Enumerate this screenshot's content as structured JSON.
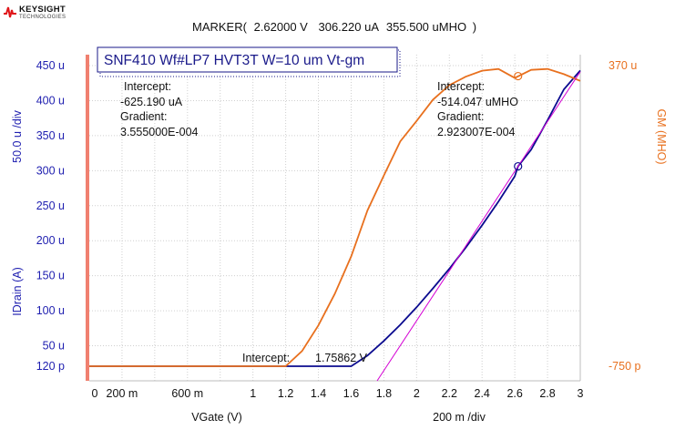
{
  "brand": {
    "name": "KEYSIGHT",
    "sub": "TECHNOLOGIES"
  },
  "marker": {
    "label": "MARKER(",
    "vgate": "2.62000 V",
    "idrain": "306.220 uA",
    "gm": "355.500 uMHO",
    "close": ")"
  },
  "colors": {
    "idrain": "#0b0b8f",
    "gm": "#e8701e",
    "tangent": "#d400d4",
    "left_bar": "#f08070",
    "grid": "#cfcfcf",
    "axis_label": "#1f1fb0"
  },
  "chart_data": {
    "type": "line",
    "title": "SNF410 Wf#LP7 HVT3T W=10 um Vt-gm",
    "xlabel": "VGate (V)",
    "x_scale_label": "200 m /div",
    "ylabel_left": "IDrain (A)",
    "ylabel_left_scale": "50.0 u /div",
    "ylabel_right": "GM (MHO)",
    "xlim": [
      0,
      3
    ],
    "ylim_left": [
      0,
      450
    ],
    "ylim_left_unit": "uA",
    "ylim_right": [
      -750,
      370
    ],
    "x_ticks": [
      "0",
      "200 m",
      "600 m",
      "1",
      "1.2",
      "1.4",
      "1.6",
      "1.8",
      "2",
      "2.2",
      "2.4",
      "2.6",
      "2.8",
      "3"
    ],
    "y_left_ticks": [
      "450 u",
      "400 u",
      "350 u",
      "300 u",
      "250 u",
      "200 u",
      "150 u",
      "100 u",
      "50 u",
      "120 p"
    ],
    "y_right_ticks": [
      "370 u",
      "-750 p"
    ],
    "grid": true,
    "series": [
      {
        "name": "IDrain",
        "axis": "left",
        "points": [
          [
            0,
            0
          ],
          [
            1.0,
            0
          ],
          [
            1.2,
            0.3
          ],
          [
            1.3,
            1
          ],
          [
            1.4,
            3
          ],
          [
            1.5,
            9
          ],
          [
            1.6,
            20
          ],
          [
            1.7,
            36
          ],
          [
            1.8,
            57
          ],
          [
            1.9,
            80
          ],
          [
            2.0,
            105
          ],
          [
            2.1,
            132
          ],
          [
            2.2,
            160
          ],
          [
            2.3,
            190
          ],
          [
            2.4,
            222
          ],
          [
            2.5,
            256
          ],
          [
            2.6,
            292
          ],
          [
            2.62,
            306.22
          ],
          [
            2.7,
            330
          ],
          [
            2.8,
            372
          ],
          [
            2.9,
            416
          ],
          [
            3.0,
            443
          ]
        ]
      },
      {
        "name": "GM",
        "axis": "right",
        "points": [
          [
            0,
            0
          ],
          [
            1.0,
            0
          ],
          [
            1.1,
            4
          ],
          [
            1.2,
            13
          ],
          [
            1.3,
            35
          ],
          [
            1.4,
            65
          ],
          [
            1.5,
            102
          ],
          [
            1.6,
            146
          ],
          [
            1.7,
            200
          ],
          [
            1.8,
            241
          ],
          [
            1.9,
            281
          ],
          [
            2.0,
            305
          ],
          [
            2.1,
            330
          ],
          [
            2.2,
            347
          ],
          [
            2.3,
            357
          ],
          [
            2.4,
            364
          ],
          [
            2.5,
            366
          ],
          [
            2.6,
            355.5
          ],
          [
            2.7,
            365
          ],
          [
            2.8,
            366
          ],
          [
            2.9,
            360
          ],
          [
            3.0,
            352
          ]
        ]
      },
      {
        "name": "Tangent",
        "axis": "left",
        "points": [
          [
            1.7586,
            0
          ],
          [
            3.0,
            441.3
          ]
        ]
      }
    ],
    "marker_point": {
      "x": 2.62,
      "y": 306.22
    },
    "annotations": {
      "left_intercept_label": "Intercept:",
      "left_intercept_value": "-625.190 uA",
      "left_gradient_label": "Gradient:",
      "left_gradient_value": "3.555000E-004",
      "right_intercept_label": "Intercept:",
      "right_intercept_value": "-514.047 uMHO",
      "right_gradient_label": "Gradient:",
      "right_gradient_value": "2.923007E-004",
      "x_intercept_label": "Intercept:",
      "x_intercept_value": "1.75862 V"
    }
  }
}
